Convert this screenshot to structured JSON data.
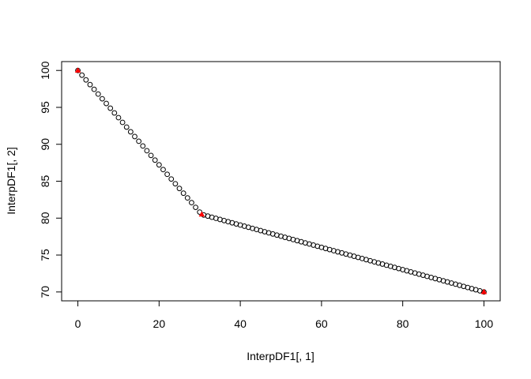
{
  "chart_data": {
    "type": "scatter",
    "title": "",
    "xlabel": "InterpDF1[, 1]",
    "ylabel": "InterpDF1[, 2]",
    "xlim": [
      -4,
      104
    ],
    "ylim": [
      68.8,
      101.2
    ],
    "xticks": [
      0,
      20,
      40,
      60,
      80,
      100
    ],
    "yticks": [
      70,
      75,
      80,
      85,
      90,
      95,
      100
    ],
    "xtick_labels": [
      "0",
      "20",
      "40",
      "60",
      "80",
      "100"
    ],
    "ytick_labels": [
      "70",
      "75",
      "80",
      "85",
      "90",
      "95",
      "100"
    ],
    "grid": false,
    "series": [
      {
        "marker": "open-circle",
        "color": "#000000",
        "knots": [
          [
            0,
            100
          ],
          [
            30.5,
            80.5
          ],
          [
            100,
            70
          ]
        ],
        "x_start": 0,
        "x_end": 100,
        "n_points": 101
      },
      {
        "marker": "filled-triangle",
        "color": "#ff0000",
        "points": [
          [
            0,
            100
          ],
          [
            30.5,
            80.5
          ],
          [
            100,
            70
          ]
        ]
      }
    ]
  }
}
